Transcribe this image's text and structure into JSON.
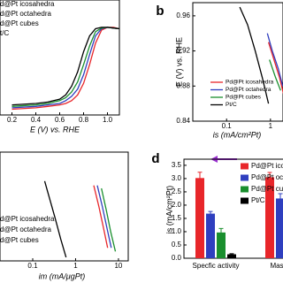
{
  "chart_data": [
    {
      "type": "line",
      "x_label": "E (V) vs. RHE",
      "xlim": [
        0.1,
        1.1
      ],
      "xticks": [
        0.2,
        0.4,
        0.6,
        0.8,
        {
          "value": 1.0,
          "label": "1.0"
        }
      ],
      "ylim": [
        -6,
        2
      ],
      "x": [
        0.2,
        0.4,
        0.5,
        0.6,
        0.65,
        0.7,
        0.75,
        0.8,
        0.85,
        0.9,
        0.95,
        1.0,
        1.05,
        1.1
      ],
      "series": [
        {
          "name": "d@Pt icosahedra",
          "color": "#e8262a",
          "values": [
            -5.6,
            -5.5,
            -5.4,
            -5.3,
            -5.2,
            -5.0,
            -4.6,
            -3.8,
            -2.5,
            -1.0,
            -0.1,
            0.1,
            0.1,
            0.0
          ]
        },
        {
          "name": "d@Pt octahedra",
          "color": "#2f3fbf",
          "values": [
            -5.5,
            -5.4,
            -5.3,
            -5.2,
            -5.0,
            -4.7,
            -4.2,
            -3.2,
            -1.8,
            -0.5,
            0.0,
            0.1,
            0.05,
            0.0
          ]
        },
        {
          "name": "d@Pt cubes",
          "color": "#1a8f2e",
          "values": [
            -5.4,
            -5.3,
            -5.2,
            -5.0,
            -4.8,
            -4.4,
            -3.7,
            -2.5,
            -1.2,
            -0.2,
            0.05,
            0.1,
            0.05,
            0.0
          ]
        },
        {
          "name": "t/C",
          "color": "#000000",
          "values": [
            -5.3,
            -5.2,
            -5.1,
            -4.9,
            -4.6,
            -4.0,
            -3.0,
            -1.6,
            -0.5,
            0.0,
            0.1,
            0.1,
            0.05,
            0.0
          ]
        }
      ]
    },
    {
      "type": "line",
      "panel_label": "b",
      "x_label": "is (mA/cm²Pt)",
      "y_label": "E (V) vs. RHE",
      "xscale": "log",
      "xlim": [
        0.017,
        1.93
      ],
      "xticks": [
        0.1,
        1
      ],
      "ylim": [
        0.84,
        0.975
      ],
      "yticks": [
        0.84,
        0.88,
        0.92,
        0.96
      ],
      "series": [
        {
          "name": "Pd@Pt icosahedra",
          "color": "#e8262a",
          "x": [
            0.9,
            1.2,
            1.6,
            2.0
          ],
          "values": [
            0.93,
            0.91,
            0.89,
            0.87
          ]
        },
        {
          "name": "Pd@Pt octahedra",
          "color": "#2f3fbf",
          "x": [
            0.85,
            1.1,
            1.5,
            1.9
          ],
          "values": [
            0.94,
            0.92,
            0.9,
            0.88
          ]
        },
        {
          "name": "Pd@Pt cubes",
          "color": "#1a8f2e",
          "x": [
            0.95,
            1.3,
            1.7
          ],
          "values": [
            0.91,
            0.89,
            0.875
          ]
        },
        {
          "name": "Pt/C",
          "color": "#000000",
          "x": [
            0.2,
            0.3,
            0.45,
            0.65,
            0.9
          ],
          "values": [
            0.97,
            0.95,
            0.92,
            0.89,
            0.86
          ]
        }
      ]
    },
    {
      "type": "line",
      "x_label": "im (mA/μgPt)",
      "xscale": "log",
      "xlim": [
        0.01726,
        16.9
      ],
      "xticks": [
        0.1,
        1,
        10
      ],
      "ylim": [
        0.825,
        0.975
      ],
      "series": [
        {
          "name": "d@Pt icosahedra",
          "color": "#e8262a",
          "x": [
            2.65,
            3.5,
            4.5,
            5.6
          ],
          "values": [
            0.929,
            0.9,
            0.87,
            0.843
          ]
        },
        {
          "name": "d@Pt octahedra",
          "color": "#2f3fbf",
          "x": [
            3.2,
            4.2,
            5.4,
            6.8
          ],
          "values": [
            0.929,
            0.9,
            0.87,
            0.843
          ]
        },
        {
          "name": "d@Pt cubes",
          "color": "#1a8f2e",
          "x": [
            4,
            5.2,
            6.6,
            8.5
          ],
          "values": [
            0.925,
            0.895,
            0.865,
            0.838
          ]
        },
        {
          "color": "#000000",
          "x": [
            0.19,
            0.25,
            0.33,
            0.45,
            0.6
          ],
          "values": [
            0.935,
            0.91,
            0.885,
            0.855,
            0.83
          ]
        }
      ]
    },
    {
      "type": "bar",
      "panel_label": "d",
      "y_label": "is (mA/cm²Pt)",
      "categories": [
        "Specfic activity",
        "Mass"
      ],
      "ylim": [
        0,
        3.73
      ],
      "yticks": [
        {
          "value": 0,
          "label": "0.0"
        },
        0.5,
        {
          "value": 1,
          "label": "1.0"
        },
        1.5,
        {
          "value": 2,
          "label": "2.0"
        },
        2.5,
        {
          "value": 3,
          "label": "3.0"
        },
        3.5
      ],
      "series": [
        {
          "name": "Pd@Pt icosahedra",
          "color": "#e8262a",
          "values": [
            3.02,
            3.05
          ],
          "errors": [
            0.22,
            0.18
          ]
        },
        {
          "name": "Pd@Pt octahedra",
          "color": "#2f3fbf",
          "values": [
            1.68,
            2.25
          ],
          "errors": [
            0.08,
            0.18
          ]
        },
        {
          "name": "Pd@Pt cubes",
          "color": "#1a8f2e",
          "values": [
            0.97,
            null
          ],
          "errors": [
            0.15,
            null
          ]
        },
        {
          "name": "Pt/C",
          "color": "#000000",
          "values": [
            0.15,
            null
          ],
          "errors": [
            0.02,
            null
          ]
        }
      ]
    }
  ]
}
